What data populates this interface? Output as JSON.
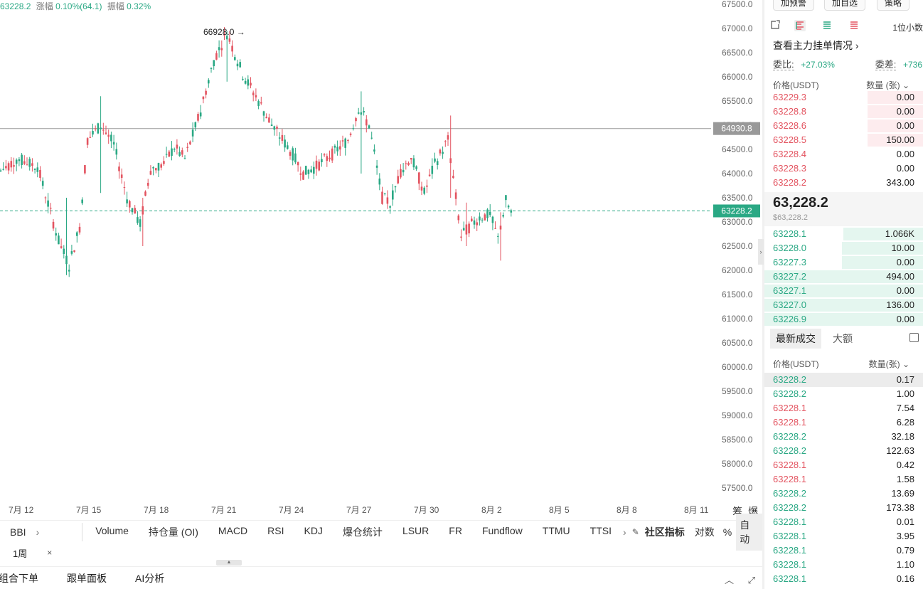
{
  "top_info": {
    "price": "63228.2",
    "change_label": "涨幅",
    "change": "0.10%(64.1)",
    "amplitude_label": "振幅",
    "amplitude": "0.32%"
  },
  "chart_data": {
    "type": "candlestick",
    "y_ticks": [
      "67500.0",
      "67000.0",
      "66500.0",
      "66000.0",
      "65500.0",
      "65000.0",
      "64500.0",
      "64000.0",
      "63500.0",
      "63000.0",
      "62500.0",
      "62000.0",
      "61500.0",
      "61000.0",
      "60500.0",
      "60000.0",
      "59500.0",
      "59000.0",
      "58500.0",
      "58000.0",
      "57500.0"
    ],
    "ylim": [
      57500,
      67500
    ],
    "x_ticks": [
      "7月 12",
      "7月 15",
      "7月 18",
      "7月 21",
      "7月 24",
      "7月 27",
      "7月 30",
      "8月 2",
      "8月 5",
      "8月 8",
      "8月 11"
    ],
    "high_marker": "66928.0",
    "hline_label": "64930.8",
    "hline_value": 64930.8,
    "last_price_label": "63228.2",
    "last_price_value": 63228.2,
    "x_axis_right_labels": [
      "筹",
      "爆"
    ],
    "colors": {
      "up": "#2aa884",
      "down": "#e35460"
    },
    "waypoints": [
      [
        0,
        64050
      ],
      [
        6,
        64300
      ],
      [
        14,
        64150
      ],
      [
        22,
        62600
      ],
      [
        26,
        62100
      ],
      [
        30,
        62900
      ],
      [
        33,
        64700
      ],
      [
        38,
        65000
      ],
      [
        43,
        64600
      ],
      [
        48,
        63500
      ],
      [
        53,
        62950
      ],
      [
        57,
        64100
      ],
      [
        62,
        64200
      ],
      [
        66,
        64550
      ],
      [
        70,
        64300
      ],
      [
        76,
        65300
      ],
      [
        81,
        66350
      ],
      [
        86,
        66900
      ],
      [
        92,
        66050
      ],
      [
        98,
        65500
      ],
      [
        103,
        65000
      ],
      [
        107,
        64700
      ],
      [
        111,
        64400
      ],
      [
        115,
        64000
      ],
      [
        120,
        64150
      ],
      [
        126,
        64400
      ],
      [
        132,
        64700
      ],
      [
        136,
        65350
      ],
      [
        140,
        65000
      ],
      [
        145,
        63500
      ],
      [
        148,
        63400
      ],
      [
        152,
        64050
      ],
      [
        156,
        64350
      ],
      [
        161,
        63600
      ],
      [
        165,
        64200
      ],
      [
        170,
        64700
      ],
      [
        175,
        62700
      ],
      [
        179,
        62950
      ],
      [
        182,
        63100
      ],
      [
        186,
        63150
      ],
      [
        189,
        62650
      ],
      [
        192,
        63450
      ],
      [
        194,
        63200
      ]
    ],
    "wicks": [
      [
        25,
        61900,
        63500
      ],
      [
        38,
        63600,
        65600
      ],
      [
        54,
        62500,
        63500
      ],
      [
        86,
        65900,
        66950
      ],
      [
        137,
        64000,
        65700
      ],
      [
        171,
        63500,
        65200
      ],
      [
        177,
        62500,
        63400
      ],
      [
        190,
        62200,
        63200
      ]
    ]
  },
  "indicators": {
    "left": "BBI",
    "list": [
      "Volume",
      "持仓量 (OI)",
      "MACD",
      "RSI",
      "KDJ",
      "爆仓统计",
      "LSUR",
      "FR",
      "Fundflow",
      "TTMU",
      "TTSI"
    ],
    "community": "社区指标",
    "log": "对数",
    "percent": "%",
    "auto": "自动"
  },
  "timeframe": "1周",
  "bottom_tabs": [
    "组合下单",
    "跟单面板",
    "AI分析"
  ],
  "orderbook": {
    "buttons": [
      "加预警",
      "加自选",
      "策略"
    ],
    "decimals": "1位小数",
    "title": "查看主力挂单情况",
    "ratio_label": "委比:",
    "ratio": "+27.03%",
    "diff_label": "委差:",
    "diff": "+736",
    "price_header": "价格(USDT)",
    "qty_header": "数量 (张)",
    "asks": [
      {
        "price": "63229.3",
        "qty": "0.00",
        "depth": 0.35
      },
      {
        "price": "63228.8",
        "qty": "0.00",
        "depth": 0.35
      },
      {
        "price": "63228.6",
        "qty": "0.00",
        "depth": 0.35
      },
      {
        "price": "63228.5",
        "qty": "150.00",
        "depth": 0.35
      },
      {
        "price": "63228.4",
        "qty": "0.00",
        "depth": 0.0
      },
      {
        "price": "63228.3",
        "qty": "0.00",
        "depth": 0.0
      },
      {
        "price": "63228.2",
        "qty": "343.00",
        "depth": 0.0
      }
    ],
    "last": "63,228.2",
    "last_usd": "$63,228.2",
    "bids": [
      {
        "price": "63228.1",
        "qty": "1.066K",
        "depth": 0.5
      },
      {
        "price": "63228.0",
        "qty": "10.00",
        "depth": 0.51
      },
      {
        "price": "63227.3",
        "qty": "0.00",
        "depth": 0.51
      },
      {
        "price": "63227.2",
        "qty": "494.00",
        "depth": 1.0
      },
      {
        "price": "63227.1",
        "qty": "0.00",
        "depth": 1.0
      },
      {
        "price": "63227.0",
        "qty": "136.00",
        "depth": 1.0
      },
      {
        "price": "63226.9",
        "qty": "0.00",
        "depth": 1.0
      }
    ],
    "trades_tab": "最新成交",
    "large_tab": "大额",
    "trades_price_header": "价格(USDT)",
    "trades_qty_header": "数量(张)",
    "trades": [
      {
        "price": "63228.2",
        "qty": "0.17",
        "side": "buy"
      },
      {
        "price": "63228.2",
        "qty": "1.00",
        "side": "buy"
      },
      {
        "price": "63228.1",
        "qty": "7.54",
        "side": "sell"
      },
      {
        "price": "63228.1",
        "qty": "6.28",
        "side": "sell"
      },
      {
        "price": "63228.2",
        "qty": "32.18",
        "side": "buy"
      },
      {
        "price": "63228.2",
        "qty": "122.63",
        "side": "buy"
      },
      {
        "price": "63228.1",
        "qty": "0.42",
        "side": "sell"
      },
      {
        "price": "63228.1",
        "qty": "1.58",
        "side": "sell"
      },
      {
        "price": "63228.2",
        "qty": "13.69",
        "side": "buy"
      },
      {
        "price": "63228.2",
        "qty": "173.38",
        "side": "buy"
      },
      {
        "price": "63228.1",
        "qty": "0.01",
        "side": "buy"
      },
      {
        "price": "63228.1",
        "qty": "3.95",
        "side": "buy"
      },
      {
        "price": "63228.1",
        "qty": "0.79",
        "side": "buy"
      },
      {
        "price": "63228.1",
        "qty": "1.10",
        "side": "buy"
      },
      {
        "price": "63228.1",
        "qty": "0.16",
        "side": "buy"
      }
    ]
  }
}
